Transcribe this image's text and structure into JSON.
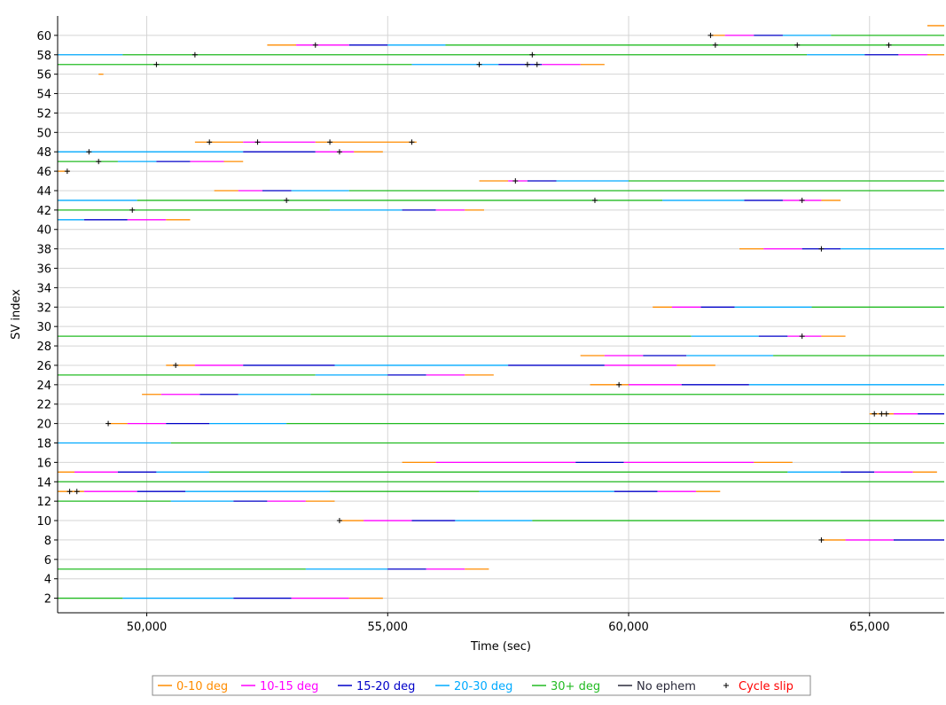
{
  "chart_data": {
    "type": "timeline",
    "xlabel": "Time (sec)",
    "ylabel": "SV index",
    "xlim": [
      48150,
      66550
    ],
    "ylim": [
      0.5,
      62
    ],
    "x_ticks": [
      50000,
      55000,
      60000,
      65000
    ],
    "x_tick_labels": [
      "50,000",
      "55,000",
      "60,000",
      "65,000"
    ],
    "y_ticks": [
      2,
      4,
      6,
      8,
      10,
      12,
      14,
      16,
      18,
      20,
      22,
      24,
      26,
      28,
      30,
      32,
      34,
      36,
      38,
      40,
      42,
      44,
      46,
      48,
      50,
      52,
      54,
      56,
      58,
      60
    ],
    "grid": true,
    "legend_position": "bottom",
    "colors": {
      "0-10": "#ff8c00",
      "10-15": "#ff00ff",
      "15-20": "#0000c8",
      "20-30": "#00aaff",
      "30+": "#22bb22",
      "no_ephem": "#2a2a3a",
      "cycle_slip": "#ff0000"
    },
    "legend": [
      {
        "key": "0-10",
        "label": "0-10 deg",
        "kind": "line"
      },
      {
        "key": "10-15",
        "label": "10-15 deg",
        "kind": "line"
      },
      {
        "key": "15-20",
        "label": "15-20 deg",
        "kind": "line"
      },
      {
        "key": "20-30",
        "label": "20-30 deg",
        "kind": "line"
      },
      {
        "key": "30+",
        "label": "30+ deg",
        "kind": "line"
      },
      {
        "key": "no_ephem",
        "label": "No ephem",
        "kind": "line"
      },
      {
        "key": "cycle_slip",
        "label": "Cycle slip",
        "kind": "cross"
      }
    ],
    "tracks": [
      {
        "sv": 61,
        "segments": [
          [
            "0-10",
            66200,
            66550
          ]
        ],
        "slips": []
      },
      {
        "sv": 60,
        "segments": [
          [
            "0-10",
            61700,
            62000
          ],
          [
            "10-15",
            62000,
            62600
          ],
          [
            "15-20",
            62600,
            63200
          ],
          [
            "20-30",
            63200,
            64200
          ],
          [
            "30+",
            64200,
            66550
          ]
        ],
        "slips": [
          61700
        ]
      },
      {
        "sv": 59,
        "segments": [
          [
            "0-10",
            52500,
            53100
          ],
          [
            "10-15",
            53100,
            54200
          ],
          [
            "15-20",
            54200,
            55000
          ],
          [
            "20-30",
            55000,
            56200
          ],
          [
            "30+",
            56200,
            66550
          ]
        ],
        "slips": [
          53500,
          61800,
          63500,
          65400
        ]
      },
      {
        "sv": 58,
        "segments": [
          [
            "20-30",
            48150,
            49500
          ],
          [
            "30+",
            49500,
            63700
          ],
          [
            "20-30",
            63700,
            64900
          ],
          [
            "15-20",
            64900,
            65600
          ],
          [
            "10-15",
            65600,
            66200
          ],
          [
            "0-10",
            66200,
            66550
          ]
        ],
        "slips": [
          51000,
          58000
        ]
      },
      {
        "sv": 57,
        "segments": [
          [
            "30+",
            48150,
            55500
          ],
          [
            "20-30",
            55500,
            57300
          ],
          [
            "15-20",
            57300,
            58200
          ],
          [
            "10-15",
            58200,
            59000
          ],
          [
            "0-10",
            59000,
            59500
          ]
        ],
        "slips": [
          50200,
          56900,
          57900,
          58100
        ]
      },
      {
        "sv": 56,
        "segments": [
          [
            "0-10",
            49000,
            49100
          ]
        ],
        "slips": []
      },
      {
        "sv": 49,
        "segments": [
          [
            "0-10",
            51000,
            52000
          ],
          [
            "10-15",
            52000,
            53500
          ],
          [
            "0-10",
            53500,
            55600
          ]
        ],
        "slips": [
          51300,
          52300,
          53800,
          55500
        ]
      },
      {
        "sv": 48,
        "segments": [
          [
            "20-30",
            48150,
            52000
          ],
          [
            "15-20",
            52000,
            53500
          ],
          [
            "10-15",
            53500,
            54300
          ],
          [
            "0-10",
            54300,
            54900
          ]
        ],
        "slips": [
          48800,
          54000
        ]
      },
      {
        "sv": 47,
        "segments": [
          [
            "30+",
            48150,
            49400
          ],
          [
            "20-30",
            49400,
            50200
          ],
          [
            "15-20",
            50200,
            50900
          ],
          [
            "10-15",
            50900,
            51600
          ],
          [
            "0-10",
            51600,
            52000
          ]
        ],
        "slips": [
          49000
        ]
      },
      {
        "sv": 46,
        "segments": [
          [
            "0-10",
            48150,
            48400
          ]
        ],
        "slips": [
          48350
        ]
      },
      {
        "sv": 45,
        "segments": [
          [
            "0-10",
            56900,
            57500
          ],
          [
            "10-15",
            57500,
            57900
          ],
          [
            "15-20",
            57900,
            58500
          ],
          [
            "20-30",
            58500,
            60000
          ],
          [
            "30+",
            60000,
            66550
          ]
        ],
        "slips": [
          57650
        ]
      },
      {
        "sv": 44,
        "segments": [
          [
            "0-10",
            51400,
            51900
          ],
          [
            "10-15",
            51900,
            52400
          ],
          [
            "15-20",
            52400,
            53000
          ],
          [
            "20-30",
            53000,
            54200
          ],
          [
            "30+",
            54200,
            66550
          ]
        ],
        "slips": []
      },
      {
        "sv": 43,
        "segments": [
          [
            "20-30",
            48150,
            49800
          ],
          [
            "30+",
            49800,
            60700
          ],
          [
            "20-30",
            60700,
            62400
          ],
          [
            "15-20",
            62400,
            63200
          ],
          [
            "10-15",
            63200,
            64000
          ],
          [
            "0-10",
            64000,
            64400
          ]
        ],
        "slips": [
          52900,
          59300,
          63600
        ]
      },
      {
        "sv": 42,
        "segments": [
          [
            "30+",
            48150,
            53800
          ],
          [
            "20-30",
            53800,
            55300
          ],
          [
            "15-20",
            55300,
            56000
          ],
          [
            "10-15",
            56000,
            56600
          ],
          [
            "0-10",
            56600,
            57000
          ]
        ],
        "slips": [
          49700
        ]
      },
      {
        "sv": 41,
        "segments": [
          [
            "20-30",
            48150,
            48700
          ],
          [
            "15-20",
            48700,
            49600
          ],
          [
            "10-15",
            49600,
            50400
          ],
          [
            "0-10",
            50400,
            50900
          ]
        ],
        "slips": []
      },
      {
        "sv": 38,
        "segments": [
          [
            "0-10",
            62300,
            62800
          ],
          [
            "10-15",
            62800,
            63600
          ],
          [
            "15-20",
            63600,
            64400
          ],
          [
            "20-30",
            64400,
            66550
          ]
        ],
        "slips": [
          64000
        ]
      },
      {
        "sv": 32,
        "segments": [
          [
            "0-10",
            60500,
            60900
          ],
          [
            "10-15",
            60900,
            61500
          ],
          [
            "15-20",
            61500,
            62200
          ],
          [
            "20-30",
            62200,
            63800
          ],
          [
            "30+",
            63800,
            66550
          ]
        ],
        "slips": []
      },
      {
        "sv": 29,
        "segments": [
          [
            "30+",
            48150,
            61300
          ],
          [
            "20-30",
            61300,
            62700
          ],
          [
            "15-20",
            62700,
            63300
          ],
          [
            "10-15",
            63300,
            64000
          ],
          [
            "0-10",
            64000,
            64500
          ]
        ],
        "slips": [
          63600
        ]
      },
      {
        "sv": 27,
        "segments": [
          [
            "0-10",
            59000,
            59500
          ],
          [
            "10-15",
            59500,
            60300
          ],
          [
            "15-20",
            60300,
            61200
          ],
          [
            "20-30",
            61200,
            63000
          ],
          [
            "30+",
            63000,
            66550
          ]
        ],
        "slips": []
      },
      {
        "sv": 26,
        "segments": [
          [
            "0-10",
            50400,
            51000
          ],
          [
            "10-15",
            51000,
            52000
          ],
          [
            "15-20",
            52000,
            53900
          ],
          [
            "20-30",
            53900,
            57500
          ],
          [
            "15-20",
            57500,
            59500
          ],
          [
            "10-15",
            59500,
            61000
          ],
          [
            "0-10",
            61000,
            61800
          ]
        ],
        "slips": [
          50600
        ]
      },
      {
        "sv": 25,
        "segments": [
          [
            "30+",
            48150,
            53500
          ],
          [
            "20-30",
            53500,
            55000
          ],
          [
            "15-20",
            55000,
            55800
          ],
          [
            "10-15",
            55800,
            56600
          ],
          [
            "0-10",
            56600,
            57200
          ]
        ],
        "slips": []
      },
      {
        "sv": 24,
        "segments": [
          [
            "0-10",
            59200,
            60000
          ],
          [
            "10-15",
            60000,
            61100
          ],
          [
            "15-20",
            61100,
            62500
          ],
          [
            "20-30",
            62500,
            66550
          ]
        ],
        "slips": [
          59800
        ]
      },
      {
        "sv": 23,
        "segments": [
          [
            "0-10",
            49900,
            50300
          ],
          [
            "10-15",
            50300,
            51100
          ],
          [
            "15-20",
            51100,
            51900
          ],
          [
            "20-30",
            51900,
            53400
          ],
          [
            "30+",
            53400,
            66550
          ]
        ],
        "slips": []
      },
      {
        "sv": 21,
        "segments": [
          [
            "0-10",
            65000,
            65500
          ],
          [
            "10-15",
            65500,
            66000
          ],
          [
            "15-20",
            66000,
            66550
          ]
        ],
        "slips": [
          65100,
          65250,
          65350
        ]
      },
      {
        "sv": 20,
        "segments": [
          [
            "0-10",
            49200,
            49600
          ],
          [
            "10-15",
            49600,
            50400
          ],
          [
            "15-20",
            50400,
            51300
          ],
          [
            "20-30",
            51300,
            52900
          ],
          [
            "30+",
            52900,
            66550
          ]
        ],
        "slips": [
          49200
        ]
      },
      {
        "sv": 18,
        "segments": [
          [
            "20-30",
            48150,
            50500
          ],
          [
            "30+",
            50500,
            66550
          ]
        ],
        "slips": []
      },
      {
        "sv": 16,
        "segments": [
          [
            "0-10",
            55300,
            56000
          ],
          [
            "10-15",
            56000,
            58900
          ],
          [
            "15-20",
            58900,
            59900
          ],
          [
            "10-15",
            59900,
            62600
          ],
          [
            "0-10",
            62600,
            63400
          ]
        ],
        "slips": []
      },
      {
        "sv": 15,
        "segments": [
          [
            "0-10",
            48150,
            48500
          ],
          [
            "10-15",
            48500,
            49400
          ],
          [
            "15-20",
            49400,
            50200
          ],
          [
            "20-30",
            50200,
            51300
          ],
          [
            "30+",
            51300,
            63300
          ],
          [
            "20-30",
            63300,
            64400
          ],
          [
            "15-20",
            64400,
            65100
          ],
          [
            "10-15",
            65100,
            65900
          ],
          [
            "0-10",
            65900,
            66400
          ]
        ],
        "slips": []
      },
      {
        "sv": 14,
        "segments": [
          [
            "30+",
            48150,
            66550
          ]
        ],
        "slips": []
      },
      {
        "sv": 13,
        "segments": [
          [
            "0-10",
            48150,
            48700
          ],
          [
            "10-15",
            48700,
            49800
          ],
          [
            "15-20",
            49800,
            50800
          ],
          [
            "20-30",
            50800,
            53800
          ],
          [
            "30+",
            53800,
            56900
          ],
          [
            "20-30",
            56900,
            59700
          ],
          [
            "15-20",
            59700,
            60600
          ],
          [
            "10-15",
            60600,
            61400
          ],
          [
            "0-10",
            61400,
            61900
          ]
        ],
        "slips": [
          48400,
          48550
        ]
      },
      {
        "sv": 12,
        "segments": [
          [
            "30+",
            48150,
            50500
          ],
          [
            "20-30",
            50500,
            51800
          ],
          [
            "15-20",
            51800,
            52500
          ],
          [
            "10-15",
            52500,
            53300
          ],
          [
            "0-10",
            53300,
            53900
          ]
        ],
        "slips": []
      },
      {
        "sv": 10,
        "segments": [
          [
            "0-10",
            54000,
            54500
          ],
          [
            "10-15",
            54500,
            55500
          ],
          [
            "15-20",
            55500,
            56400
          ],
          [
            "20-30",
            56400,
            58000
          ],
          [
            "30+",
            58000,
            66550
          ]
        ],
        "slips": [
          54000
        ]
      },
      {
        "sv": 8,
        "segments": [
          [
            "0-10",
            64000,
            64500
          ],
          [
            "10-15",
            64500,
            65500
          ],
          [
            "15-20",
            65500,
            66550
          ]
        ],
        "slips": [
          64000
        ]
      },
      {
        "sv": 5,
        "segments": [
          [
            "30+",
            48150,
            53300
          ],
          [
            "20-30",
            53300,
            55000
          ],
          [
            "15-20",
            55000,
            55800
          ],
          [
            "10-15",
            55800,
            56600
          ],
          [
            "0-10",
            56600,
            57100
          ]
        ],
        "slips": []
      },
      {
        "sv": 2,
        "segments": [
          [
            "30+",
            48150,
            49500
          ],
          [
            "20-30",
            49500,
            51800
          ],
          [
            "15-20",
            51800,
            53000
          ],
          [
            "10-15",
            53000,
            54200
          ],
          [
            "0-10",
            54200,
            54900
          ]
        ],
        "slips": []
      }
    ]
  }
}
